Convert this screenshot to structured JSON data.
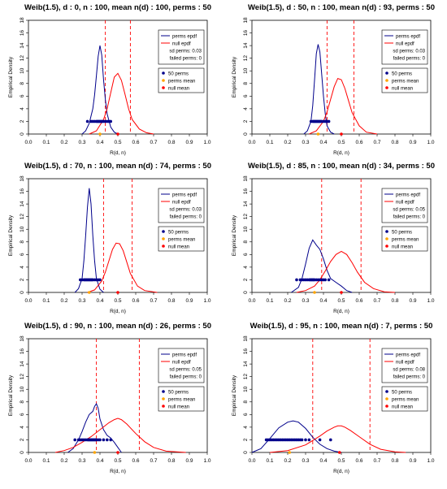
{
  "colors": {
    "perms": "#00008b",
    "null": "#ff0000",
    "mean": "#ffa500",
    "axis": "#000000"
  },
  "chart_data": [
    {
      "type": "line",
      "title": "Weib(1.5),  d : 0,  n : 100,  mean n(d) : 100,  perms : 50",
      "xlabel": "R(d, n)",
      "ylabel": "Empirical Density",
      "xlim": [
        0,
        1
      ],
      "ylim": [
        0,
        18
      ],
      "xticks": [
        "0.0",
        "0.1",
        "0.2",
        "0.3",
        "0.4",
        "0.5",
        "0.6",
        "0.7",
        "0.8",
        "0.9",
        "1.0"
      ],
      "yticks": [
        "0",
        "2",
        "4",
        "6",
        "8",
        "10",
        "12",
        "14",
        "16",
        "18"
      ],
      "legend": {
        "placement": "top-right",
        "lines": [
          "perms epdf",
          "null epdf",
          "sd perms: 0.03",
          "failed perms: 0"
        ],
        "points": [
          "50 perms",
          "perms mean",
          "null mean"
        ]
      },
      "vlines": [
        0.43,
        0.57
      ],
      "series": [
        {
          "name": "perms epdf",
          "x": [
            0.3,
            0.32,
            0.34,
            0.36,
            0.37,
            0.38,
            0.39,
            0.4,
            0.41,
            0.42,
            0.43,
            0.44,
            0.46,
            0.48,
            0.5
          ],
          "y": [
            0,
            0.5,
            1.7,
            4,
            6.2,
            9.2,
            12.3,
            14,
            12.5,
            8.6,
            5.5,
            3.2,
            1.1,
            0.3,
            0
          ]
        },
        {
          "name": "null epdf",
          "x": [
            0.34,
            0.38,
            0.42,
            0.44,
            0.46,
            0.48,
            0.5,
            0.52,
            0.54,
            0.56,
            0.58,
            0.62,
            0.66,
            0.7
          ],
          "y": [
            0,
            0.5,
            2.3,
            4,
            6.5,
            9,
            9.6,
            8.5,
            6.3,
            4,
            2.3,
            0.8,
            0.2,
            0
          ]
        }
      ],
      "perm_points": [
        0.33,
        0.35,
        0.36,
        0.37,
        0.38,
        0.385,
        0.39,
        0.395,
        0.4,
        0.405,
        0.41,
        0.415,
        0.42,
        0.43,
        0.44,
        0.45,
        0.46
      ],
      "perms_mean": 0.4,
      "null_mean": 0.5
    },
    {
      "type": "line",
      "title": "Weib(1.5),  d : 50,  n : 100,  mean n(d) : 93,  perms : 50",
      "xlabel": "R(d, n)",
      "ylabel": "Empirical Density",
      "xlim": [
        0,
        1
      ],
      "ylim": [
        0,
        18
      ],
      "xticks": [
        "0.0",
        "0.1",
        "0.2",
        "0.3",
        "0.4",
        "0.5",
        "0.6",
        "0.7",
        "0.8",
        "0.9",
        "1.0"
      ],
      "yticks": [
        "0",
        "2",
        "4",
        "6",
        "8",
        "10",
        "12",
        "14",
        "16",
        "18"
      ],
      "legend": {
        "placement": "top-right",
        "lines": [
          "perms epdf",
          "null epdf",
          "sd perms: 0.03",
          "failed perms: 0"
        ],
        "points": [
          "50 perms",
          "perms mean",
          "null mean"
        ]
      },
      "vlines": [
        0.42,
        0.57
      ],
      "series": [
        {
          "name": "perms epdf",
          "x": [
            0.29,
            0.31,
            0.33,
            0.34,
            0.35,
            0.36,
            0.37,
            0.38,
            0.39,
            0.4,
            0.41,
            0.42,
            0.44,
            0.46
          ],
          "y": [
            0,
            0.5,
            2,
            4.5,
            8.5,
            12.7,
            14.2,
            13,
            9.5,
            6,
            3.2,
            1.3,
            0.3,
            0
          ]
        },
        {
          "name": "null epdf",
          "x": [
            0.32,
            0.36,
            0.4,
            0.42,
            0.44,
            0.46,
            0.48,
            0.5,
            0.52,
            0.54,
            0.56,
            0.6,
            0.64,
            0.7
          ],
          "y": [
            0,
            0.5,
            2,
            3.5,
            5.5,
            7.5,
            8.8,
            8.6,
            7.2,
            5.3,
            3.4,
            1.3,
            0.3,
            0
          ]
        }
      ],
      "perm_points": [
        0.33,
        0.34,
        0.345,
        0.35,
        0.355,
        0.36,
        0.365,
        0.37,
        0.375,
        0.38,
        0.385,
        0.39,
        0.4,
        0.41,
        0.42,
        0.43
      ],
      "perms_mean": 0.37,
      "null_mean": 0.5
    },
    {
      "type": "line",
      "title": "Weib(1.5),  d : 70,  n : 100,  mean n(d) : 74,  perms : 50",
      "xlabel": "R(d, n)",
      "ylabel": "Empirical Density",
      "xlim": [
        0,
        1
      ],
      "ylim": [
        0,
        18
      ],
      "xticks": [
        "0.0",
        "0.1",
        "0.2",
        "0.3",
        "0.4",
        "0.5",
        "0.6",
        "0.7",
        "0.8",
        "0.9",
        "1.0"
      ],
      "yticks": [
        "0",
        "2",
        "4",
        "6",
        "8",
        "10",
        "12",
        "14",
        "16",
        "18"
      ],
      "legend": {
        "placement": "top-right",
        "lines": [
          "perms epdf",
          "null epdf",
          "sd perms: 0.03",
          "failed perms: 0"
        ],
        "points": [
          "50 perms",
          "perms mean",
          "null mean"
        ]
      },
      "vlines": [
        0.42,
        0.58
      ],
      "series": [
        {
          "name": "perms epdf",
          "x": [
            0.26,
            0.28,
            0.3,
            0.31,
            0.32,
            0.33,
            0.34,
            0.35,
            0.36,
            0.37,
            0.38,
            0.4,
            0.42
          ],
          "y": [
            0,
            0.6,
            2.2,
            5,
            9,
            13.5,
            16.5,
            14,
            9,
            5,
            2.2,
            0.5,
            0
          ]
        },
        {
          "name": "null epdf",
          "x": [
            0.33,
            0.37,
            0.41,
            0.43,
            0.45,
            0.47,
            0.49,
            0.51,
            0.53,
            0.55,
            0.57,
            0.61,
            0.65,
            0.72
          ],
          "y": [
            0,
            0.4,
            1.8,
            3.2,
            5,
            6.8,
            7.8,
            7.7,
            6.6,
            4.8,
            3,
            1,
            0.3,
            0
          ]
        }
      ],
      "perm_points": [
        0.29,
        0.3,
        0.31,
        0.315,
        0.32,
        0.325,
        0.33,
        0.335,
        0.34,
        0.345,
        0.35,
        0.355,
        0.36,
        0.37,
        0.38,
        0.39,
        0.4
      ],
      "perms_mean": 0.34,
      "null_mean": 0.5
    },
    {
      "type": "line",
      "title": "Weib(1.5),  d : 85,  n : 100,  mean n(d) : 34,  perms : 50",
      "xlabel": "R(d, n)",
      "ylabel": "Empirical Density",
      "xlim": [
        0,
        1
      ],
      "ylim": [
        0,
        18
      ],
      "xticks": [
        "0.0",
        "0.1",
        "0.2",
        "0.3",
        "0.4",
        "0.5",
        "0.6",
        "0.7",
        "0.8",
        "0.9",
        "1.0"
      ],
      "yticks": [
        "0",
        "2",
        "4",
        "6",
        "8",
        "10",
        "12",
        "14",
        "16",
        "18"
      ],
      "legend": {
        "placement": "top-right",
        "lines": [
          "perms epdf",
          "null epdf",
          "sd perms: 0.05",
          "failed perms: 0"
        ],
        "points": [
          "50 perms",
          "perms mean",
          "null mean"
        ]
      },
      "vlines": [
        0.39,
        0.61
      ],
      "series": [
        {
          "name": "perms epdf",
          "x": [
            0.22,
            0.26,
            0.28,
            0.3,
            0.32,
            0.34,
            0.36,
            0.38,
            0.4,
            0.42,
            0.44,
            0.47,
            0.5,
            0.53,
            0.56
          ],
          "y": [
            0,
            0.8,
            2.2,
            4.5,
            7,
            8.3,
            7.5,
            6.8,
            5.3,
            3.5,
            2.2,
            1.6,
            1,
            0.3,
            0
          ]
        },
        {
          "name": "null epdf",
          "x": [
            0.25,
            0.3,
            0.35,
            0.38,
            0.41,
            0.44,
            0.47,
            0.5,
            0.53,
            0.56,
            0.59,
            0.63,
            0.68,
            0.74,
            0.8
          ],
          "y": [
            0,
            0.3,
            1,
            2,
            3.4,
            4.9,
            6,
            6.5,
            6,
            4.7,
            3.2,
            1.6,
            0.6,
            0.1,
            0
          ]
        }
      ],
      "perm_points": [
        0.25,
        0.27,
        0.28,
        0.29,
        0.3,
        0.31,
        0.32,
        0.325,
        0.33,
        0.335,
        0.34,
        0.345,
        0.35,
        0.36,
        0.37,
        0.38,
        0.39,
        0.4,
        0.41,
        0.43
      ],
      "perms_mean": 0.35,
      "null_mean": 0.5
    },
    {
      "type": "line",
      "title": "Weib(1.5),  d : 90,  n : 100,  mean n(d) : 26,  perms : 50",
      "xlabel": "R(d, n)",
      "ylabel": "Empirical Density",
      "xlim": [
        0,
        1
      ],
      "ylim": [
        0,
        18
      ],
      "xticks": [
        "0.0",
        "0.1",
        "0.2",
        "0.3",
        "0.4",
        "0.5",
        "0.6",
        "0.7",
        "0.8",
        "0.9",
        "1.0"
      ],
      "yticks": [
        "0",
        "2",
        "4",
        "6",
        "8",
        "10",
        "12",
        "14",
        "16",
        "18"
      ],
      "legend": {
        "placement": "top-right",
        "lines": [
          "perms epdf",
          "null epdf",
          "sd perms: 0.05",
          "failed perms: 0"
        ],
        "points": [
          "50 perms",
          "perms mean",
          "null mean"
        ]
      },
      "vlines": [
        0.38,
        0.62
      ],
      "series": [
        {
          "name": "perms epdf",
          "x": [
            0.22,
            0.25,
            0.28,
            0.3,
            0.32,
            0.34,
            0.36,
            0.37,
            0.38,
            0.39,
            0.4,
            0.42,
            0.44,
            0.46,
            0.48,
            0.5,
            0.52
          ],
          "y": [
            0,
            0.6,
            2,
            3.3,
            4.8,
            6,
            6.5,
            7.3,
            7.7,
            7,
            5.3,
            3.6,
            2.7,
            2.3,
            1.6,
            0.8,
            0
          ]
        },
        {
          "name": "null epdf",
          "x": [
            0.15,
            0.2,
            0.25,
            0.3,
            0.35,
            0.4,
            0.45,
            0.48,
            0.5,
            0.52,
            0.55,
            0.6,
            0.65,
            0.7,
            0.77,
            0.88
          ],
          "y": [
            0,
            0.3,
            0.8,
            1.6,
            2.5,
            3.6,
            4.7,
            5.2,
            5.4,
            5.2,
            4.5,
            3,
            1.7,
            0.8,
            0.2,
            0
          ]
        }
      ],
      "perm_points": [
        0.26,
        0.28,
        0.29,
        0.3,
        0.31,
        0.32,
        0.33,
        0.335,
        0.34,
        0.345,
        0.35,
        0.355,
        0.36,
        0.365,
        0.37,
        0.375,
        0.38,
        0.39,
        0.4,
        0.42,
        0.44,
        0.46
      ],
      "perms_mean": 0.37,
      "null_mean": 0.5
    },
    {
      "type": "line",
      "title": "Weib(1.5),  d : 95,  n : 100,  mean n(d) : 7,  perms : 50",
      "xlabel": "R(d, n)",
      "ylabel": "Empirical Density",
      "xlim": [
        0,
        1
      ],
      "ylim": [
        0,
        18
      ],
      "xticks": [
        "0.0",
        "0.1",
        "0.2",
        "0.3",
        "0.4",
        "0.5",
        "0.6",
        "0.7",
        "0.8",
        "0.9",
        "1.0"
      ],
      "yticks": [
        "0",
        "2",
        "4",
        "6",
        "8",
        "10",
        "12",
        "14",
        "16",
        "18"
      ],
      "legend": {
        "placement": "top-right",
        "lines": [
          "perms epdf",
          "null epdf",
          "sd perms: 0.08",
          "failed perms: 0"
        ],
        "points": [
          "50 perms",
          "perms mean",
          "null mean"
        ]
      },
      "vlines": [
        0.34,
        0.66
      ],
      "series": [
        {
          "name": "perms epdf",
          "x": [
            0.0,
            0.05,
            0.1,
            0.15,
            0.2,
            0.23,
            0.26,
            0.3,
            0.34,
            0.38,
            0.42,
            0.46,
            0.5
          ],
          "y": [
            0,
            0.6,
            2.2,
            3.9,
            4.8,
            5,
            4.8,
            3.8,
            2.4,
            1.3,
            0.6,
            0.2,
            0
          ]
        },
        {
          "name": "null epdf",
          "x": [
            0.1,
            0.2,
            0.3,
            0.38,
            0.42,
            0.46,
            0.48,
            0.5,
            0.52,
            0.55,
            0.6,
            0.66,
            0.72,
            0.8,
            0.86
          ],
          "y": [
            0,
            0.3,
            1.2,
            2.6,
            3.4,
            4,
            4.2,
            4.2,
            4,
            3.5,
            2.5,
            1.3,
            0.5,
            0.1,
            0
          ]
        }
      ],
      "perm_points": [
        0.08,
        0.09,
        0.1,
        0.11,
        0.12,
        0.13,
        0.14,
        0.15,
        0.16,
        0.17,
        0.18,
        0.19,
        0.2,
        0.21,
        0.22,
        0.23,
        0.24,
        0.25,
        0.26,
        0.27,
        0.28,
        0.3,
        0.32,
        0.38,
        0.44
      ],
      "perms_mean": 0.21,
      "null_mean": 0.49
    }
  ]
}
